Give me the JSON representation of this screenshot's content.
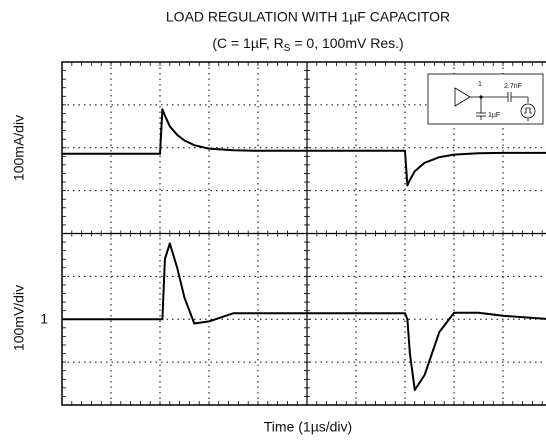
{
  "chart_data": {
    "type": "line",
    "title": "LOAD REGULATION WITH 1µF CAPACITOR",
    "subtitle": [
      "(C = 1µF, R",
      "S",
      " = 0, 100mV Res.)"
    ],
    "xlabel": "Time (1µs/div)",
    "ylabels": [
      "100mA/div",
      "100mV/div"
    ],
    "channel_label": "1",
    "inset_labels": [
      "1",
      "2.7nF",
      "1µF"
    ],
    "xlim": [
      0,
      10
    ],
    "ylim": [
      -4,
      4
    ],
    "xticks": [
      0,
      1,
      2,
      3,
      4,
      5,
      6,
      7,
      8,
      9,
      10
    ],
    "yticks": [
      -4,
      -3,
      -2,
      -1,
      0,
      1,
      2,
      3,
      4
    ],
    "grid": true,
    "x": [
      0,
      2.0,
      2.05,
      2.1,
      2.2,
      2.35,
      2.5,
      2.7,
      3.0,
      3.5,
      4.0,
      7.0,
      7.05,
      7.1,
      7.2,
      7.4,
      7.7,
      8.0,
      8.5,
      9.0,
      10
    ],
    "series": [
      {
        "color": "#000000",
        "values": [
          1.86,
          1.86,
          2.9,
          2.75,
          2.5,
          2.3,
          2.17,
          2.06,
          1.98,
          1.94,
          1.93,
          1.93,
          1.12,
          1.25,
          1.45,
          1.65,
          1.78,
          1.84,
          1.87,
          1.88,
          1.88
        ]
      },
      {
        "color": "#000000",
        "values": [
          -2.0,
          -2.0,
          -2.0,
          -0.6,
          -0.23,
          -0.8,
          -1.5,
          -2.1,
          -2.05,
          -1.86,
          -1.86,
          -1.86,
          -2.0,
          -2.8,
          -3.65,
          -3.3,
          -2.3,
          -1.85,
          -1.85,
          -1.92,
          -2.0
        ]
      }
    ]
  }
}
